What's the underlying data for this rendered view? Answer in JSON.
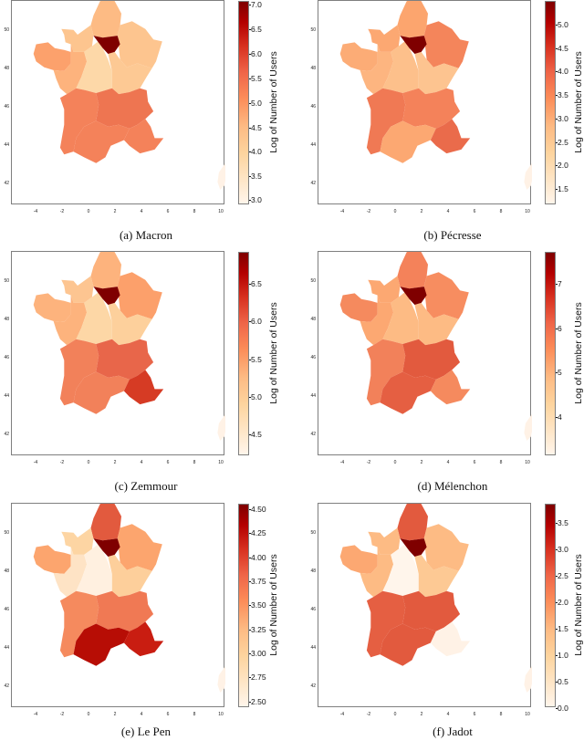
{
  "figure": {
    "colorbar_label": "Log of Number of Users",
    "x_ticks": [
      "-4",
      "-2",
      "0",
      "2",
      "4",
      "6",
      "8",
      "10"
    ],
    "y_ticks": [
      "50",
      "48",
      "46",
      "44",
      "42"
    ],
    "colormap": "OrRd"
  },
  "panels": [
    {
      "caption": "(a) Macron",
      "cbar_ticks": [
        "7.0",
        "6.5",
        "6.0",
        "5.5",
        "5.0",
        "4.5",
        "4.0",
        "3.5",
        "3.0"
      ],
      "cbar_range": [
        2.9,
        7.1
      ]
    },
    {
      "caption": "(b) Pécresse",
      "cbar_ticks": [
        "5.0",
        "4.5",
        "4.0",
        "3.5",
        "3.0",
        "2.5",
        "2.0",
        "1.5"
      ],
      "cbar_range": [
        1.1,
        5.45
      ]
    },
    {
      "caption": "(c) Zemmour",
      "cbar_ticks": [
        "6.5",
        "6.0",
        "5.5",
        "5.0",
        "4.5"
      ],
      "cbar_range": [
        4.1,
        6.9
      ]
    },
    {
      "caption": "(d) Mélenchon",
      "cbar_ticks": [
        "7",
        "6",
        "5",
        "4"
      ],
      "cbar_range": [
        3.0,
        7.6
      ]
    },
    {
      "caption": "(e) Le Pen",
      "cbar_ticks": [
        "4.50",
        "4.25",
        "4.00",
        "3.75",
        "3.50",
        "3.25",
        "3.00",
        "2.75",
        "2.50"
      ],
      "cbar_range": [
        2.4,
        4.52
      ]
    },
    {
      "caption": "(f) Jadot",
      "cbar_ticks": [
        "3.5",
        "3.0",
        "2.5",
        "2.0",
        "1.5",
        "1.0",
        "0.5",
        "0.0"
      ],
      "cbar_range": [
        0.0,
        3.75
      ]
    }
  ],
  "chart_data": [
    {
      "type": "heatmap",
      "title": "(a) Macron",
      "xlabel": "",
      "ylabel": "",
      "colorbar_label": "Log of Number of Users",
      "xlim": [
        -5.8,
        10.3
      ],
      "ylim": [
        41,
        51.5
      ],
      "regions": {
        "Ile-de-France": 7.0,
        "Hauts-de-France": 4.4,
        "Normandie": 4.3,
        "Grand Est": 4.3,
        "Bretagne": 4.8,
        "Pays de la Loire": 4.5,
        "Centre-Val de Loire": 3.8,
        "Bourgogne-Franche-Comte": 4.1,
        "Nouvelle-Aquitaine": 5.2,
        "Auvergne-Rhone-Alpes": 5.4,
        "Occitanie": 5.2,
        "Provence-Alpes-Cote d'Azur": 5.2,
        "Corse": 3.0
      }
    },
    {
      "type": "heatmap",
      "title": "(b) Pécresse",
      "xlabel": "",
      "ylabel": "",
      "colorbar_label": "Log of Number of Users",
      "xlim": [
        -5.8,
        10.3
      ],
      "ylim": [
        41,
        51.5
      ],
      "regions": {
        "Ile-de-France": 5.4,
        "Hauts-de-France": 3.0,
        "Normandie": 2.9,
        "Grand Est": 3.6,
        "Bretagne": 2.8,
        "Pays de la Loire": 2.6,
        "Centre-Val de Loire": 2.4,
        "Bourgogne-Franche-Comte": 2.3,
        "Nouvelle-Aquitaine": 3.7,
        "Auvergne-Rhone-Alpes": 3.5,
        "Occitanie": 2.9,
        "Provence-Alpes-Cote d'Azur": 3.9,
        "Corse": 1.1
      }
    },
    {
      "type": "heatmap",
      "title": "(c) Zemmour",
      "xlabel": "",
      "ylabel": "",
      "colorbar_label": "Log of Number of Users",
      "xlim": [
        -5.8,
        10.3
      ],
      "ylim": [
        41,
        51.5
      ],
      "regions": {
        "Ile-de-France": 6.9,
        "Hauts-de-France": 5.0,
        "Normandie": 4.8,
        "Grand Est": 5.3,
        "Bretagne": 5.0,
        "Pays de la Loire": 5.0,
        "Centre-Val de Loire": 4.6,
        "Bourgogne-Franche-Comte": 4.7,
        "Nouvelle-Aquitaine": 5.6,
        "Auvergne-Rhone-Alpes": 5.8,
        "Occitanie": 5.6,
        "Provence-Alpes-Cote d'Azur": 6.1,
        "Corse": 4.2
      }
    },
    {
      "type": "heatmap",
      "title": "(d) Mélenchon",
      "xlabel": "",
      "ylabel": "",
      "colorbar_label": "Log of Number of Users",
      "xlim": [
        -5.8,
        10.3
      ],
      "ylim": [
        41,
        51.5
      ],
      "regions": {
        "Ile-de-France": 7.5,
        "Hauts-de-France": 5.8,
        "Normandie": 5.2,
        "Grand Est": 5.6,
        "Bretagne": 5.7,
        "Pays de la Loire": 5.2,
        "Centre-Val de Loire": 4.9,
        "Bourgogne-Franche-Comte": 4.9,
        "Nouvelle-Aquitaine": 5.8,
        "Auvergne-Rhone-Alpes": 6.2,
        "Occitanie": 6.1,
        "Provence-Alpes-Cote d'Azur": 5.6,
        "Corse": 3.1
      }
    },
    {
      "type": "heatmap",
      "title": "(e) Le Pen",
      "xlabel": "",
      "ylabel": "",
      "colorbar_label": "Log of Number of Users",
      "xlim": [
        -5.8,
        10.3
      ],
      "ylim": [
        41,
        51.5
      ],
      "regions": {
        "Ile-de-France": 4.5,
        "Hauts-de-France": 3.8,
        "Normandie": 2.8,
        "Grand Est": 3.2,
        "Bretagne": 3.2,
        "Pays de la Loire": 2.6,
        "Centre-Val de Loire": 2.5,
        "Bourgogne-Franche-Comte": 2.9,
        "Nouvelle-Aquitaine": 3.4,
        "Auvergne-Rhone-Alpes": 3.5,
        "Occitanie": 4.2,
        "Provence-Alpes-Cote d'Azur": 4.1,
        "Corse": 2.45
      }
    },
    {
      "type": "heatmap",
      "title": "(f) Jadot",
      "xlabel": "",
      "ylabel": "",
      "colorbar_label": "Log of Number of Users",
      "xlim": [
        -5.8,
        10.3
      ],
      "ylim": [
        41,
        51.5
      ],
      "regions": {
        "Ile-de-France": 3.7,
        "Hauts-de-France": 2.6,
        "Normandie": 1.3,
        "Grand Est": 1.3,
        "Bretagne": 1.6,
        "Pays de la Loire": 1.3,
        "Centre-Val de Loire": 0.0,
        "Bourgogne-Franche-Comte": 1.1,
        "Nouvelle-Aquitaine": 2.5,
        "Auvergne-Rhone-Alpes": 2.6,
        "Occitanie": 2.6,
        "Provence-Alpes-Cote d'Azur": 0.0,
        "Corse": 0.0
      }
    }
  ]
}
